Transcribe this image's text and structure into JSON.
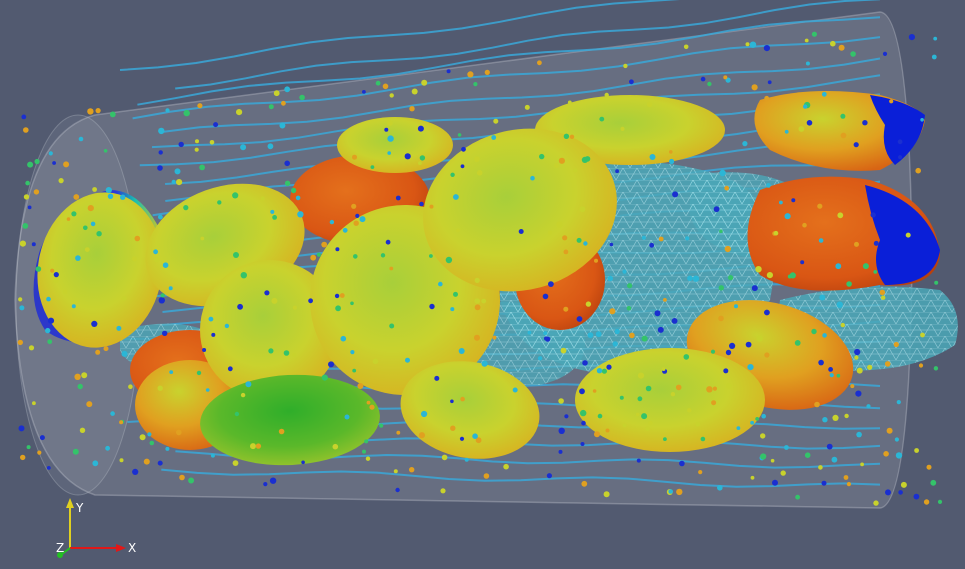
{
  "scene": {
    "background_color": "#525a70",
    "tube_color": "#c8ccd4",
    "mesh_color": "#5fb3c0",
    "streamline_color": "#3aa8d8",
    "cell_gradient": [
      "#0a2bd6",
      "#1fa8c8",
      "#1fb36a",
      "#c9d42a",
      "#e07818",
      "#c8400e"
    ],
    "particle_palette": [
      "#1a2fd0",
      "#2bb6d6",
      "#34c36a",
      "#c8d22c",
      "#e0a020"
    ]
  },
  "axes": {
    "x_label": "X",
    "y_label": "Y",
    "z_label": "Z",
    "x_color": "#e01818",
    "y_color": "#e0d020",
    "z_color": "#22c022"
  }
}
